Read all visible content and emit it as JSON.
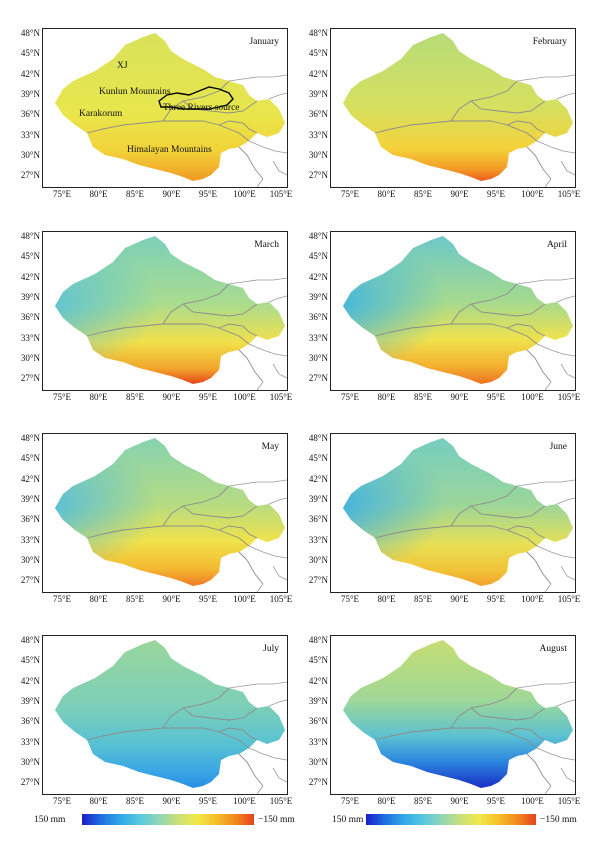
{
  "panels": [
    {
      "month": "January",
      "gradient": "jan"
    },
    {
      "month": "February",
      "gradient": "feb"
    },
    {
      "month": "March",
      "gradient": "mar"
    },
    {
      "month": "April",
      "gradient": "apr"
    },
    {
      "month": "May",
      "gradient": "may"
    },
    {
      "month": "June",
      "gradient": "jun"
    },
    {
      "month": "July",
      "gradient": "jul"
    },
    {
      "month": "August",
      "gradient": "aug"
    }
  ],
  "latitude_labels": [
    "48°N",
    "45°N",
    "42°N",
    "39°N",
    "36°N",
    "33°N",
    "30°N",
    "27°N"
  ],
  "longitude_labels": [
    "75°E",
    "80°E",
    "85°E",
    "90°E",
    "95°E",
    "100°E",
    "105°E"
  ],
  "annotations": {
    "xj": "XJ",
    "kunlun": "Kunlun Mountains",
    "karakorum": "Karakorum",
    "three_rivers": "Three Rivers source",
    "himalayan": "Himalayan Mountains"
  },
  "colorbar": {
    "left_label": "150 mm",
    "right_label": "−150 mm",
    "colors": [
      "#1c1cc8",
      "#1e6fe0",
      "#2fa8e8",
      "#55c8e0",
      "#8fd6b8",
      "#c8e07a",
      "#f2e84a",
      "#f6c02a",
      "#f28a1e",
      "#e8421e"
    ]
  }
}
